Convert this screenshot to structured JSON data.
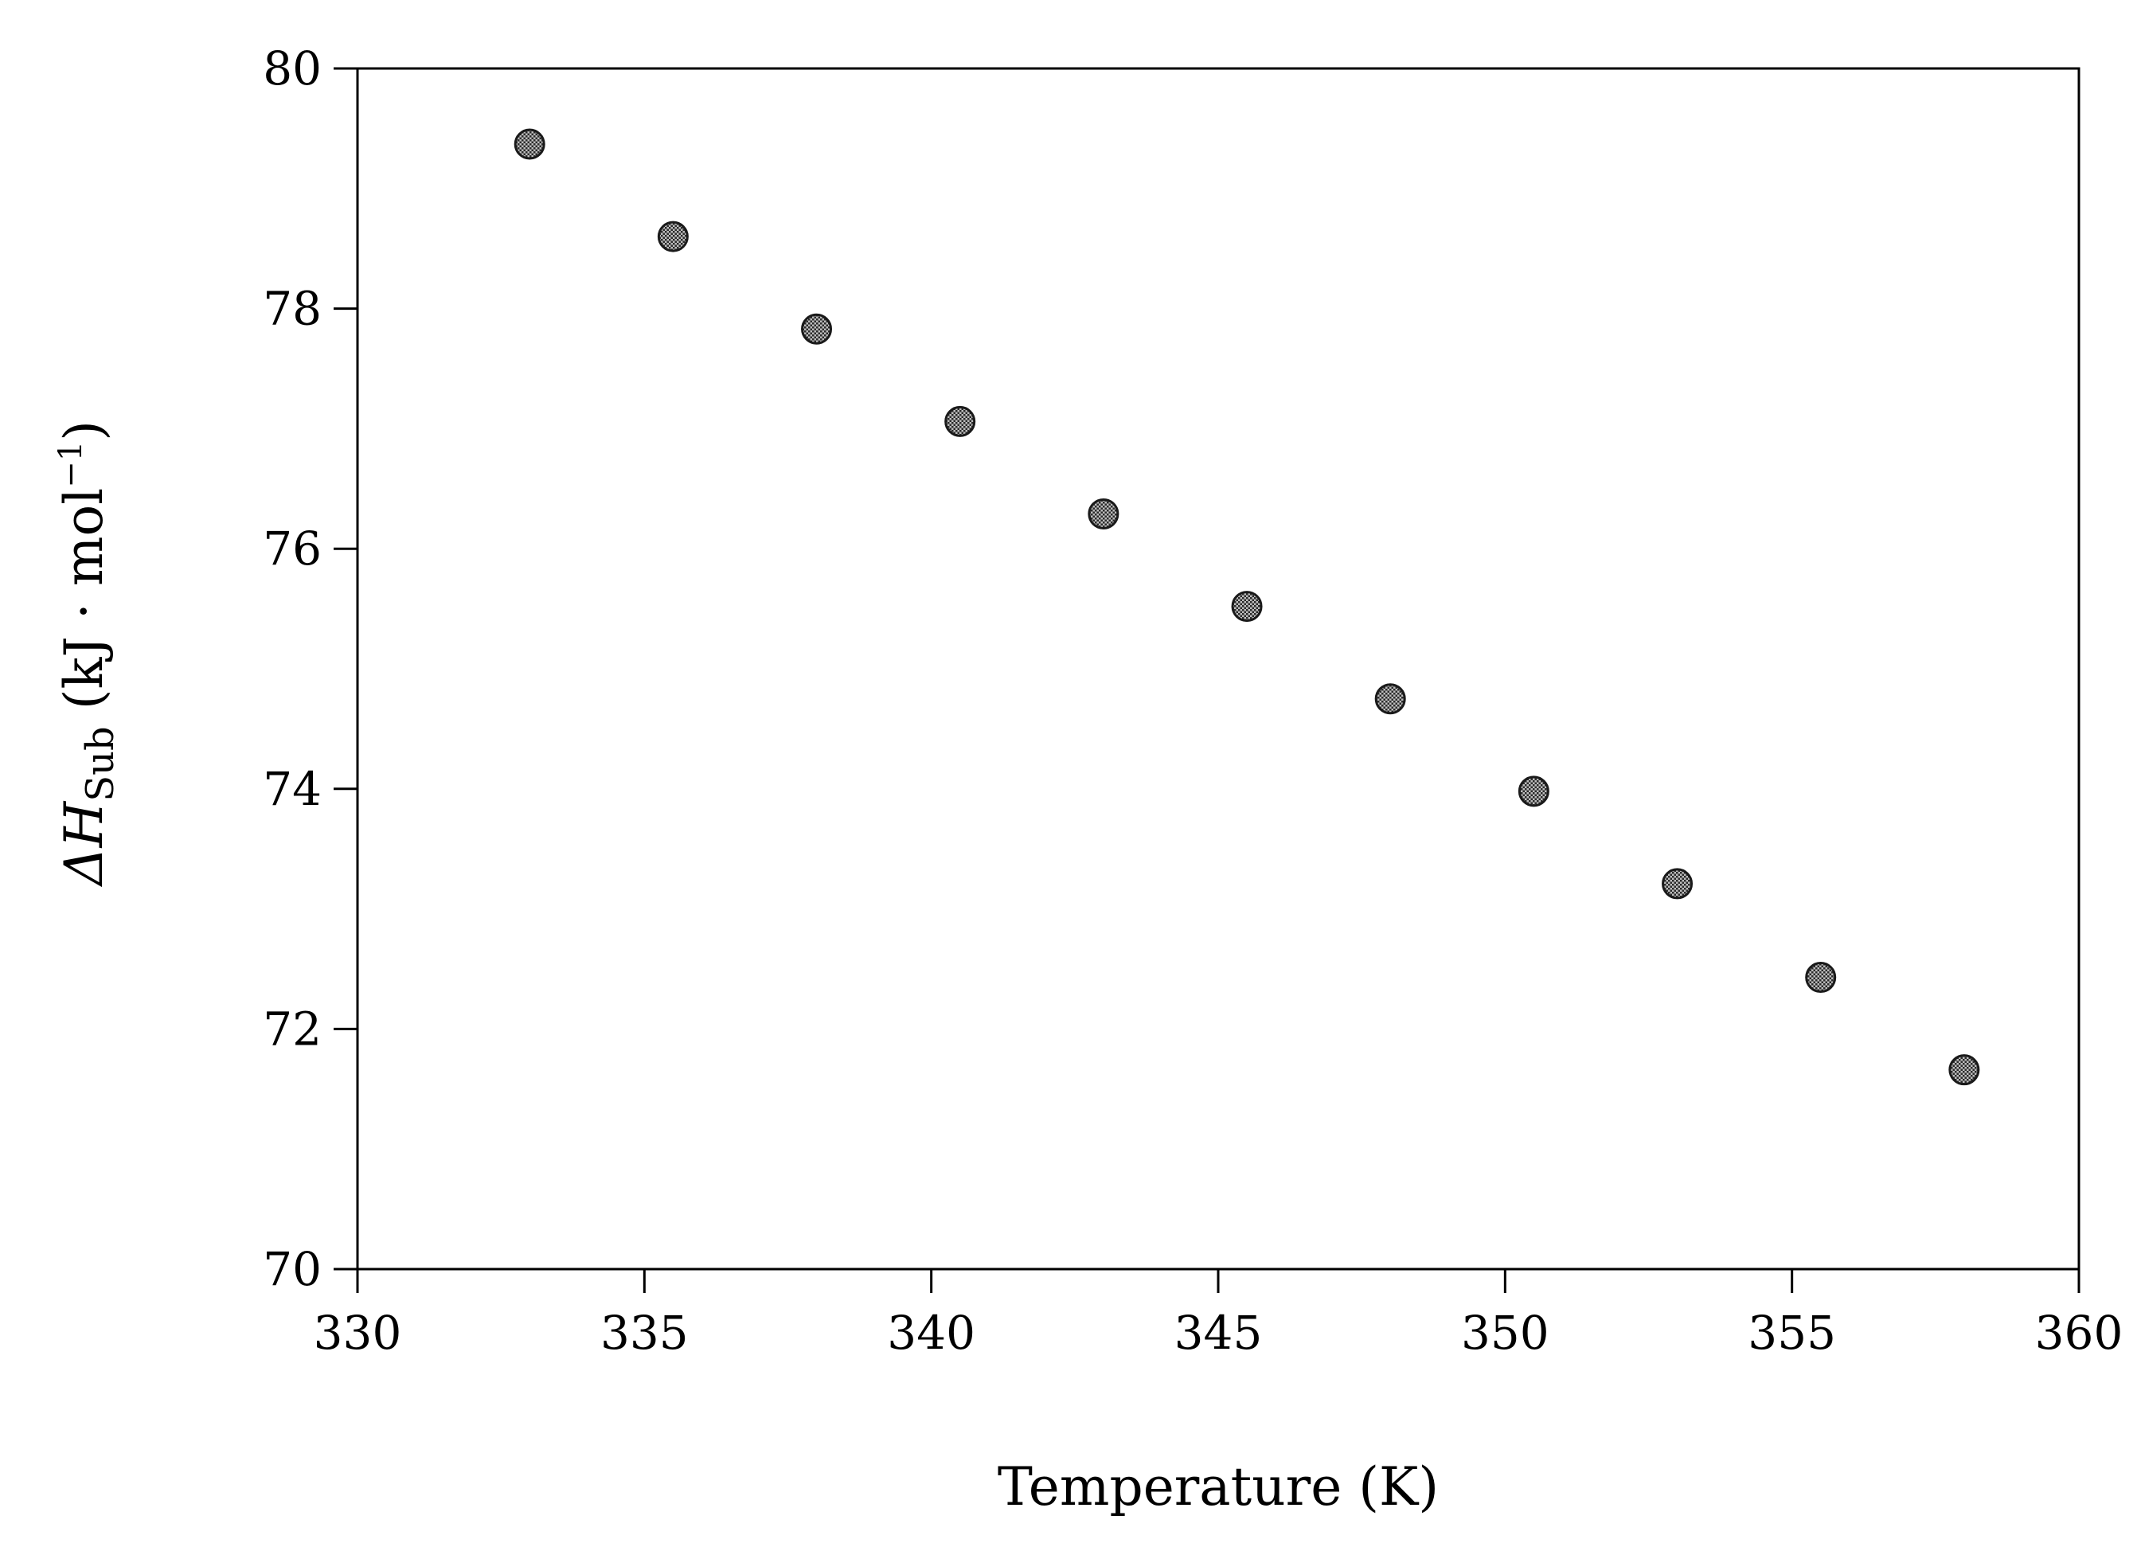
{
  "chart_data": {
    "type": "scatter",
    "title": "",
    "xlabel": "Temperature (K)",
    "ylabel": {
      "symbol": "ΔH",
      "subscript": "Sub",
      "unit_open": " (kJ · mol",
      "superscript": "−1",
      "unit_close": ")"
    },
    "xlim": [
      330,
      360
    ],
    "ylim": [
      70,
      80
    ],
    "xticks": [
      330,
      335,
      340,
      345,
      350,
      355,
      360
    ],
    "yticks": [
      70,
      72,
      74,
      76,
      78,
      80
    ],
    "grid": false,
    "marker_color": "#7a7a7a",
    "points": [
      {
        "x": 333.0,
        "y": 79.37
      },
      {
        "x": 335.5,
        "y": 78.6
      },
      {
        "x": 338.0,
        "y": 77.83
      },
      {
        "x": 340.5,
        "y": 77.06
      },
      {
        "x": 343.0,
        "y": 76.29
      },
      {
        "x": 345.5,
        "y": 75.52
      },
      {
        "x": 348.0,
        "y": 74.75
      },
      {
        "x": 350.5,
        "y": 73.98
      },
      {
        "x": 353.0,
        "y": 73.21
      },
      {
        "x": 355.5,
        "y": 72.43
      },
      {
        "x": 358.0,
        "y": 71.66
      }
    ]
  }
}
